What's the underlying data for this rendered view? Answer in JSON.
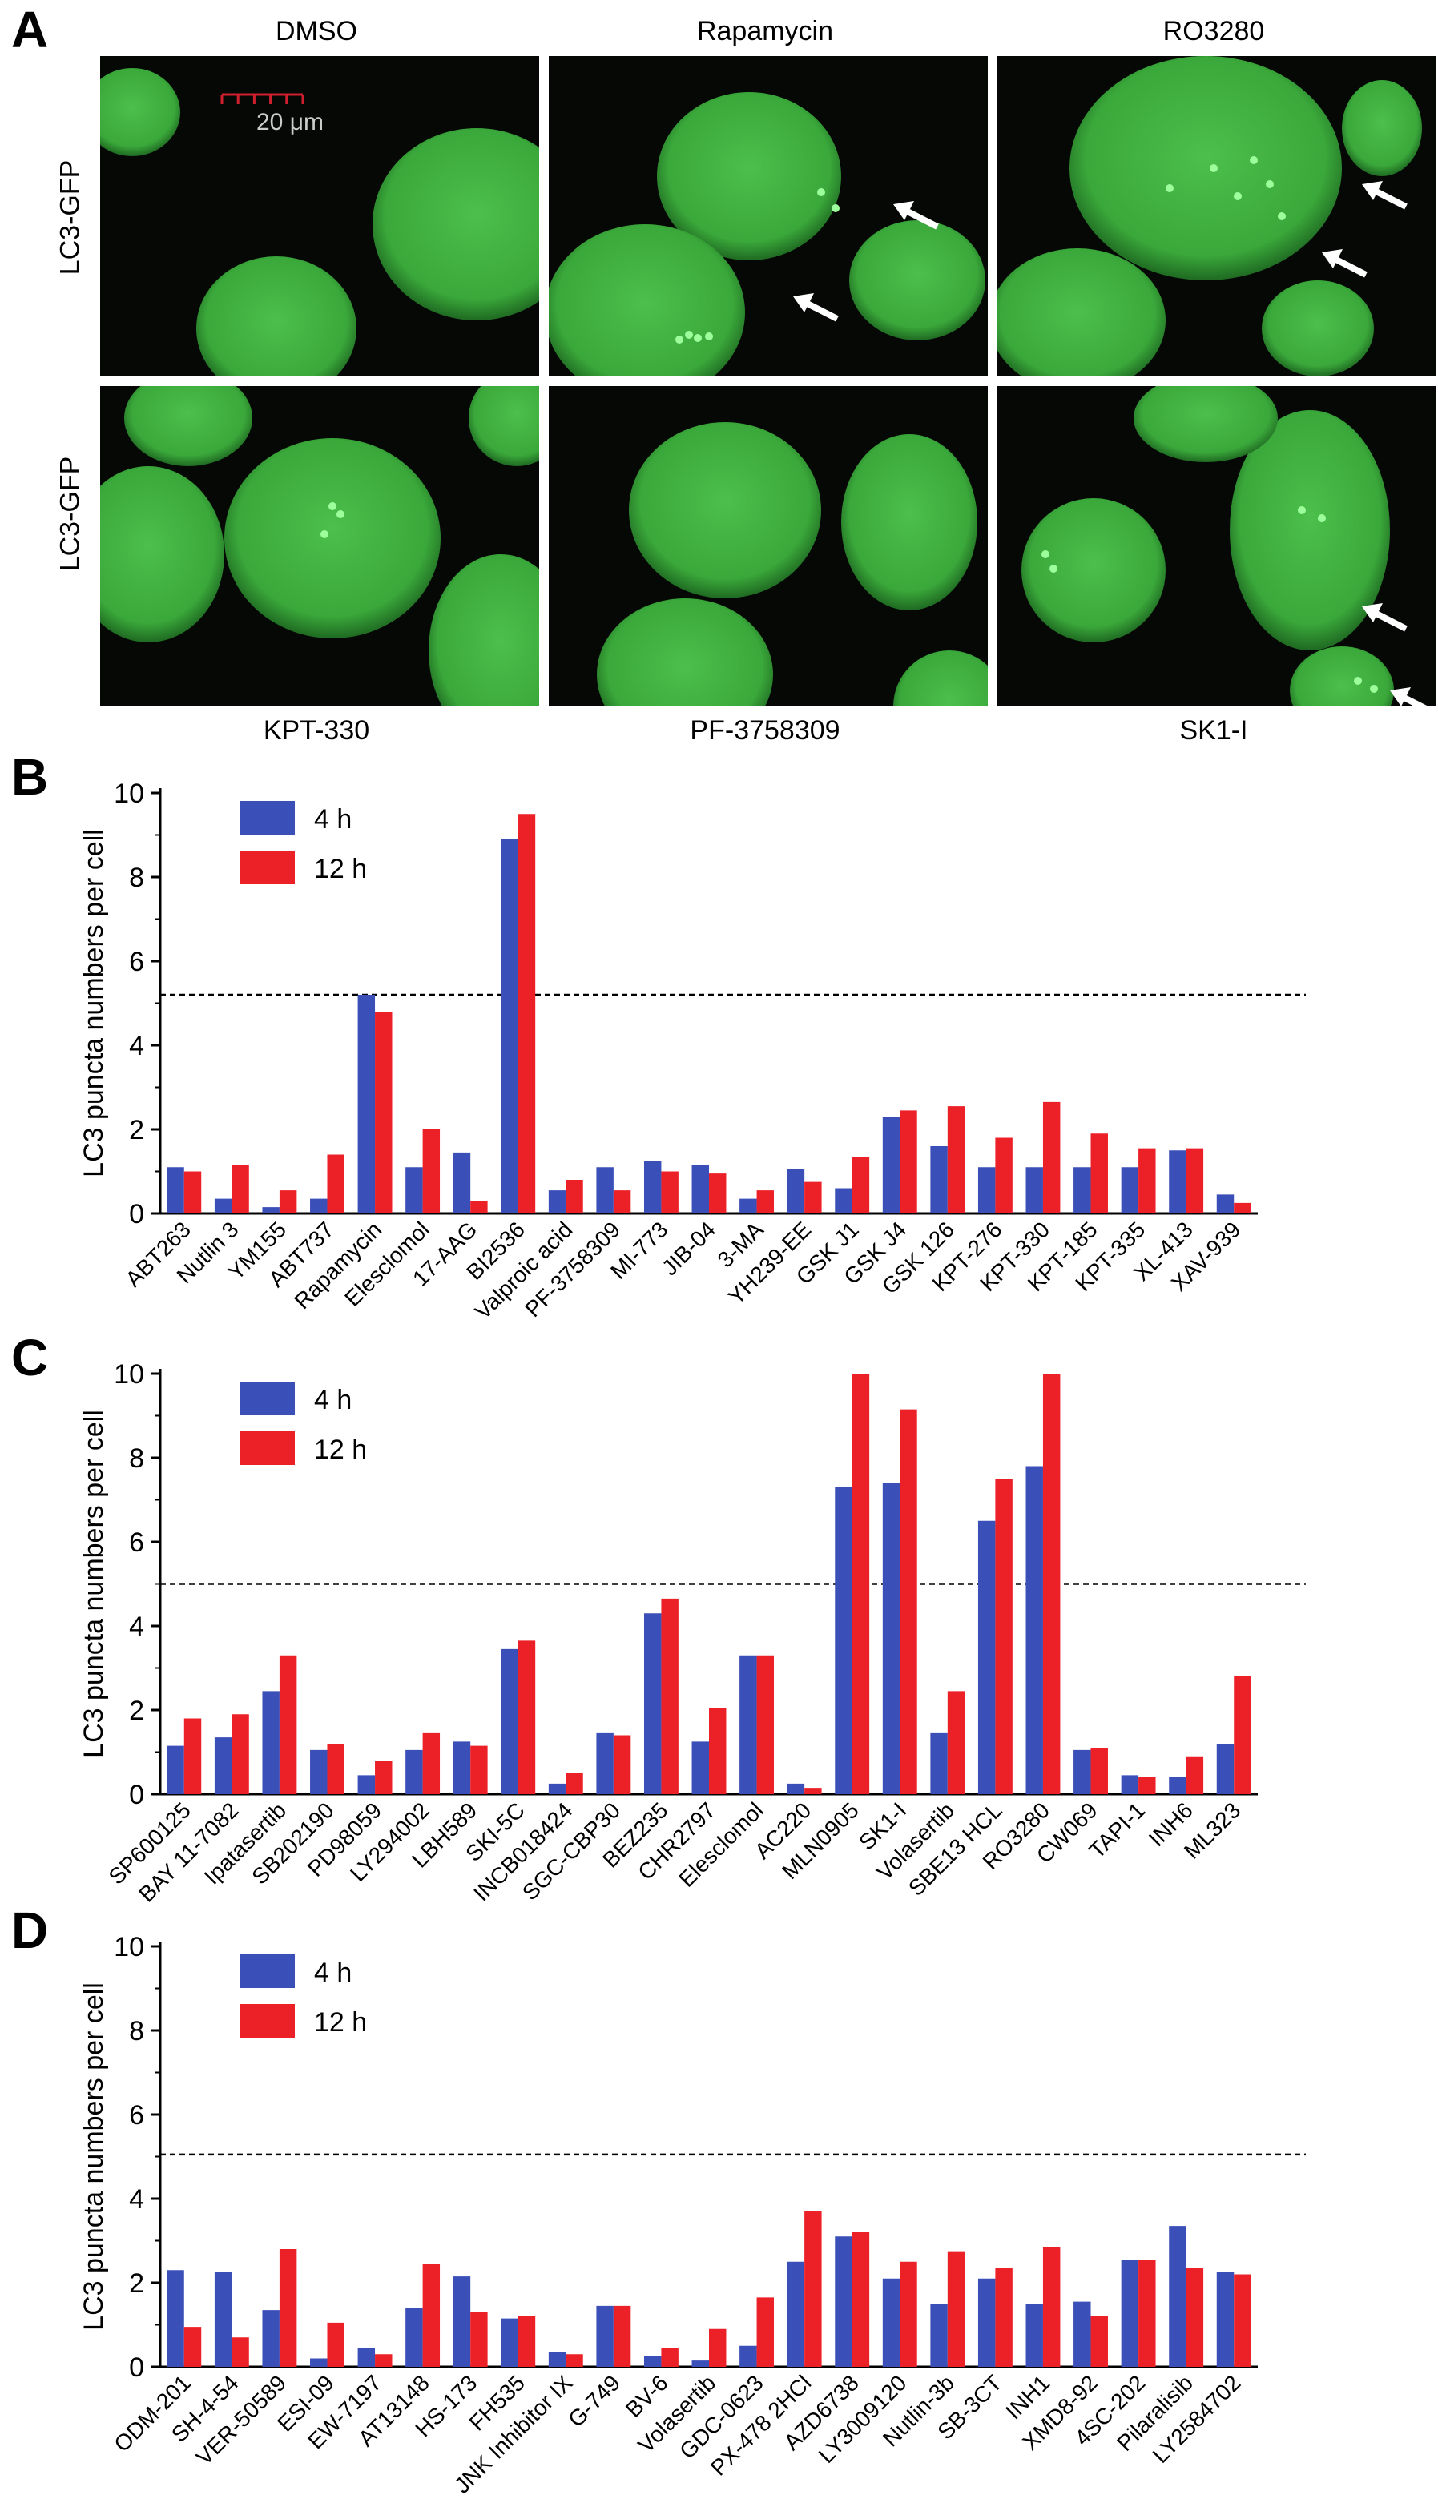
{
  "panel_a": {
    "letter": "A",
    "top_labels": [
      "DMSO",
      "Rapamycin",
      "RO3280"
    ],
    "bottom_labels": [
      "KPT-330",
      "PF-3758309",
      "SK1-I"
    ],
    "row_label": "LC3-GFP",
    "scale_bar": "20 μm",
    "colors": {
      "cell": "#3aa83a",
      "puncta": "#9cff9c",
      "arrow": "#ffffff",
      "scale": "#d02030"
    }
  },
  "chart_data": [
    {
      "letter": "B",
      "type": "bar",
      "ylabel": "LC3 puncta numbers per cell",
      "ylim": [
        0,
        10
      ],
      "yticks": [
        0,
        2,
        4,
        6,
        8,
        10
      ],
      "threshold": 5.2,
      "legend_position": "top-left",
      "categories": [
        "ABT263",
        "Nutlin 3",
        "YM155",
        "ABT737",
        "Rapamycin",
        "Elesclomol",
        "17-AAG",
        "BI2536",
        "Valproic acid",
        "PF-3758309",
        "MI-773",
        "JIB-04",
        "3-MA",
        "YH239-EE",
        "GSK J1",
        "GSK J4",
        "GSK 126",
        "KPT-276",
        "KPT-330",
        "KPT-185",
        "KPT-335",
        "XL-413",
        "XAV-939"
      ],
      "series": [
        {
          "name": "4 h",
          "color": "#3b4fb8",
          "values": [
            1.1,
            0.35,
            0.15,
            0.35,
            5.2,
            1.1,
            1.45,
            8.9,
            0.55,
            1.1,
            1.25,
            1.15,
            0.35,
            1.05,
            0.6,
            2.3,
            1.6,
            1.1,
            1.1,
            1.1,
            1.1,
            1.5,
            0.45
          ]
        },
        {
          "name": "12 h",
          "color": "#ec2027",
          "values": [
            1.0,
            1.15,
            0.55,
            1.4,
            4.8,
            2.0,
            0.3,
            9.5,
            0.8,
            0.55,
            1.0,
            0.95,
            0.55,
            0.75,
            1.35,
            2.45,
            2.55,
            1.8,
            2.65,
            1.9,
            1.55,
            1.55,
            0.25
          ]
        }
      ]
    },
    {
      "letter": "C",
      "type": "bar",
      "ylabel": "LC3 puncta numbers per cell",
      "ylim": [
        0,
        10
      ],
      "yticks": [
        0,
        2,
        4,
        6,
        8,
        10
      ],
      "threshold": 5.0,
      "legend_position": "top-left",
      "categories": [
        "SP600125",
        "BAY 11-7082",
        "Ipatasertib",
        "SB202190",
        "PD98059",
        "LY294002",
        "LBH589",
        "SKI-5C",
        "INCB018424",
        "SGC-CBP30",
        "BEZ235",
        "CHR2797",
        "Elesclomol",
        "AC220",
        "MLN0905",
        "SK1-I",
        "Volasertib",
        "SBE13 HCL",
        "RO3280",
        "CW069",
        "TAPI-1",
        "INH6",
        "ML323"
      ],
      "series": [
        {
          "name": "4 h",
          "color": "#3b4fb8",
          "values": [
            1.15,
            1.35,
            2.45,
            1.05,
            0.45,
            1.05,
            1.25,
            3.45,
            0.25,
            1.45,
            4.3,
            1.25,
            3.3,
            0.25,
            7.3,
            7.4,
            1.45,
            6.5,
            7.8,
            1.05,
            0.45,
            0.4,
            1.2
          ]
        },
        {
          "name": "12 h",
          "color": "#ec2027",
          "values": [
            1.8,
            1.9,
            3.3,
            1.2,
            0.8,
            1.45,
            1.15,
            3.65,
            0.5,
            1.4,
            4.65,
            2.05,
            3.3,
            0.15,
            10.0,
            9.15,
            2.45,
            7.5,
            10.0,
            1.1,
            0.4,
            0.9,
            2.8
          ]
        }
      ]
    },
    {
      "letter": "D",
      "type": "bar",
      "ylabel": "LC3 puncta numbers per cell",
      "ylim": [
        0,
        10
      ],
      "yticks": [
        0,
        2,
        4,
        6,
        8,
        10
      ],
      "threshold": 5.05,
      "legend_position": "top-left",
      "categories": [
        "ODM-201",
        "SH-4-54",
        "VER-50589",
        "ESI-09",
        "EW-7197",
        "AT13148",
        "HS-173",
        "FH535",
        "JNK Inhibitor IX",
        "G-749",
        "BV-6",
        "Volasertib",
        "GDC-0623",
        "PX-478 2HCl",
        "AZD6738",
        "LY3009120",
        "Nutlin-3b",
        "SB-3CT",
        "INH1",
        "XMD8-92",
        "4SC-202",
        "Pilaralisib",
        "LY2584702"
      ],
      "series": [
        {
          "name": "4 h",
          "color": "#3b4fb8",
          "values": [
            2.3,
            2.25,
            1.35,
            0.2,
            0.45,
            1.4,
            2.15,
            1.15,
            0.35,
            1.45,
            0.25,
            0.15,
            0.5,
            2.5,
            3.1,
            2.1,
            1.5,
            2.1,
            1.5,
            1.55,
            2.55,
            3.35,
            2.25
          ]
        },
        {
          "name": "12 h",
          "color": "#ec2027",
          "values": [
            0.95,
            0.7,
            2.8,
            1.05,
            0.3,
            2.45,
            1.3,
            1.2,
            0.3,
            1.45,
            0.45,
            0.9,
            1.65,
            3.7,
            3.2,
            2.5,
            2.75,
            2.35,
            2.85,
            1.2,
            2.55,
            2.35,
            2.2
          ]
        }
      ]
    }
  ]
}
